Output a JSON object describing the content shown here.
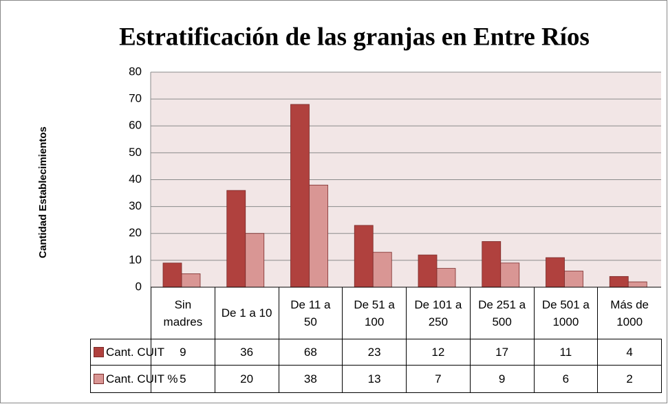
{
  "chart_data": {
    "type": "bar",
    "title": "Estratificación de las granjas en Entre Ríos",
    "y_label": "Cantidad Establecimientos",
    "categories": [
      "Sin madres",
      "De 1 a 10",
      "De 11 a 50",
      "De 51 a 100",
      "De 101 a 250",
      "De 251 a 500",
      "De 501 a 1000",
      "Más de 1000"
    ],
    "series": [
      {
        "name": "Cant. CUIT",
        "color": "#b0413e",
        "values": [
          9,
          36,
          68,
          23,
          12,
          17,
          11,
          4
        ]
      },
      {
        "name": "Cant. CUIT %",
        "color": "#d99694",
        "values": [
          5,
          20,
          38,
          13,
          7,
          9,
          6,
          2
        ]
      }
    ],
    "ylim": [
      0,
      80
    ],
    "yticks": [
      0,
      10,
      20,
      30,
      40,
      50,
      60,
      70,
      80
    ],
    "grid": true
  }
}
